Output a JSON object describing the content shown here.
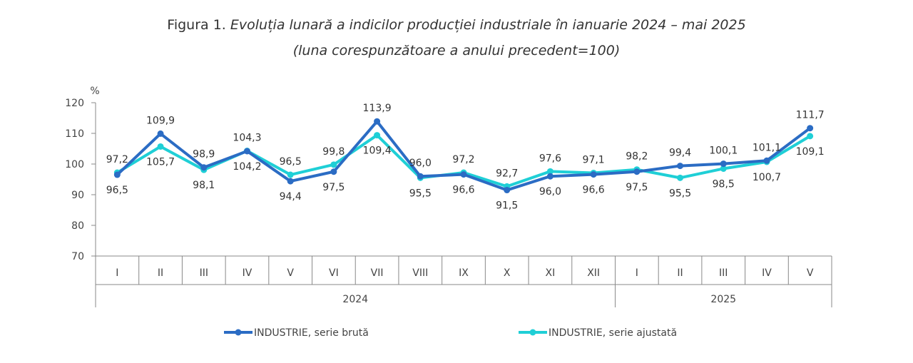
{
  "figure": {
    "label": "Figura 1.",
    "title": "Evoluția lunară a indicilor producției industriale în ianuarie 2024 – mai 2025",
    "subtitle": "(luna corespunzătoare a anului precedent=100)"
  },
  "chart_data": {
    "type": "line",
    "ylabel": "%",
    "ylim": [
      70,
      120
    ],
    "yticks": [
      70,
      80,
      90,
      100,
      110,
      120
    ],
    "categories": [
      "I",
      "II",
      "III",
      "IV",
      "V",
      "VI",
      "VII",
      "VIII",
      "IX",
      "X",
      "XI",
      "XII",
      "I",
      "II",
      "III",
      "IV",
      "V"
    ],
    "years": [
      {
        "label": "2024",
        "start": 0,
        "end": 11
      },
      {
        "label": "2025",
        "start": 12,
        "end": 16
      }
    ],
    "grid": false,
    "legend_position": "bottom",
    "series": [
      {
        "name": "INDUSTRIE, serie brută",
        "color": "#2b6cc4",
        "values": [
          96.5,
          109.9,
          98.9,
          104.2,
          94.4,
          97.5,
          113.9,
          96.0,
          96.6,
          91.5,
          96.0,
          96.6,
          97.5,
          99.4,
          100.1,
          101.1,
          111.7
        ],
        "labels": [
          "96,5",
          "109,9",
          "98,9",
          "104,2",
          "94,4",
          "97,5",
          "113,9",
          "96,0",
          "96,6",
          "91,5",
          "96,0",
          "96,6",
          "97,5",
          "99,4",
          "100,1",
          "101,1",
          "111,7"
        ]
      },
      {
        "name": "INDUSTRIE, serie ajustată",
        "color": "#1fcfd6",
        "values": [
          97.2,
          105.7,
          98.1,
          104.3,
          96.5,
          99.8,
          109.4,
          95.5,
          97.2,
          92.7,
          97.6,
          97.1,
          98.2,
          95.5,
          98.5,
          100.7,
          109.1
        ],
        "labels": [
          "97,2",
          "105,7",
          "98,1",
          "104,3",
          "96,5",
          "99,8",
          "109,4",
          "95,5",
          "97,2",
          "92,7",
          "97,6",
          "97,1",
          "98,2",
          "95,5",
          "98,5",
          "100,7",
          "109,1"
        ]
      }
    ]
  }
}
